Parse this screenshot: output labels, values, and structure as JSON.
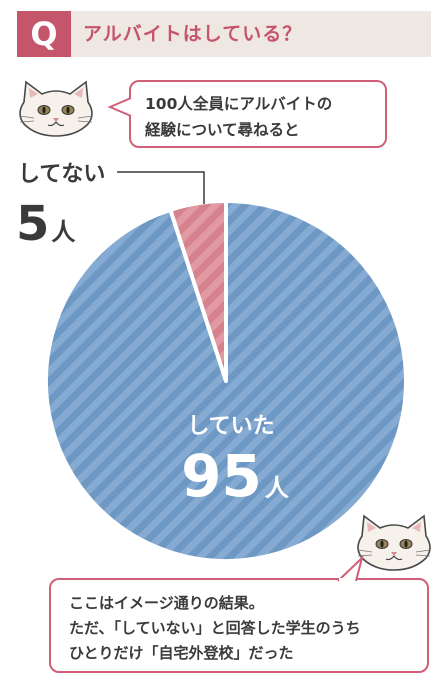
{
  "header": {
    "badge_letter": "Q",
    "question": "アルバイトはしている？",
    "badge_color": "#c5556b",
    "bar_color": "#efe7e1"
  },
  "bubble_top": {
    "lines": [
      "100人全員にアルバイトの",
      "経験について尋ねると"
    ]
  },
  "bubble_bottom": {
    "lines": [
      "ここはイメージ通りの結果。",
      "ただ、「していない」と回答した学生のうち",
      "ひとりだけ「自宅外登校」だった"
    ]
  },
  "chart_data": {
    "type": "pie",
    "title": "",
    "unit": "人",
    "slices": [
      {
        "label": "していた",
        "value": 95,
        "color": "#6e98c4",
        "stripe": "#a2c0df"
      },
      {
        "label": "してない",
        "value": 5,
        "color": "#d6828e",
        "stripe": "#eab3ba"
      }
    ]
  },
  "colors": {
    "accent": "#d25f78",
    "text": "#3a3a3a"
  },
  "icons": {
    "cat": "cat-face-icon"
  }
}
